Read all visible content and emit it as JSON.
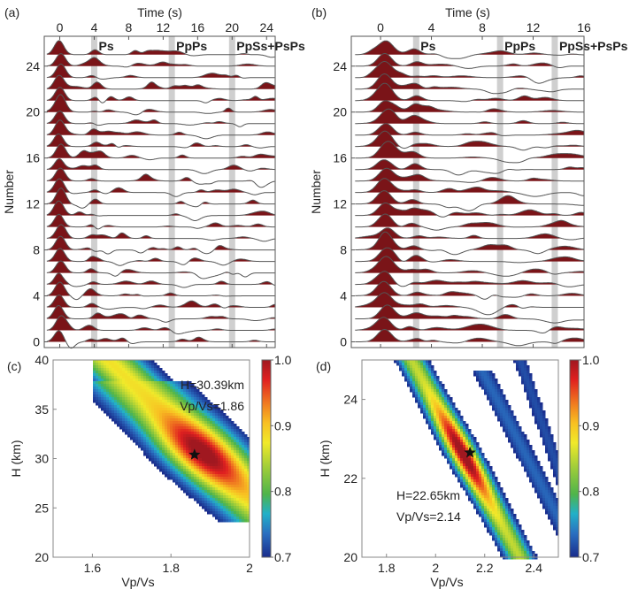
{
  "chart_data": [
    {
      "id": "a",
      "type": "area",
      "panel_label": "(a)",
      "title": "Time (s)",
      "xlabel": "Time (s)",
      "ylabel": "Number",
      "xticks": [
        0,
        4,
        8,
        12,
        16,
        20,
        24
      ],
      "yticks": [
        0,
        4,
        8,
        12,
        16,
        20,
        24
      ],
      "xlim": [
        -1.8,
        25
      ],
      "ylim": [
        -0.5,
        26.6
      ],
      "trace_count": 26,
      "fill_color": "#7a1418",
      "phases": [
        {
          "name": "Ps",
          "time": 4.0
        },
        {
          "name": "PpPs",
          "time": 13.0
        },
        {
          "name": "PpSs+PsPs",
          "time": 20.0
        }
      ]
    },
    {
      "id": "b",
      "type": "area",
      "panel_label": "(b)",
      "title": "Time (s)",
      "xlabel": "Time (s)",
      "ylabel": "Number",
      "xticks": [
        0,
        4,
        8,
        12,
        16
      ],
      "yticks": [
        0,
        4,
        8,
        12,
        16,
        20,
        24
      ],
      "xlim": [
        -2.3,
        16
      ],
      "ylim": [
        -0.5,
        26.6
      ],
      "trace_count": 26,
      "fill_color": "#7a1418",
      "phases": [
        {
          "name": "Ps",
          "time": 2.8
        },
        {
          "name": "PpPs",
          "time": 9.4
        },
        {
          "name": "PpSs+PsPs",
          "time": 13.7
        }
      ]
    },
    {
      "id": "c",
      "type": "heatmap",
      "panel_label": "(c)",
      "xlabel": "Vp/Vs",
      "ylabel": "H (km)",
      "xticks": [
        1.6,
        1.8,
        2.0
      ],
      "yticks": [
        20,
        25,
        30,
        35,
        40
      ],
      "xlim": [
        1.5,
        2.0
      ],
      "ylim": [
        20,
        40
      ],
      "best": {
        "H": 30.39,
        "VpVs": 1.86
      },
      "annotation": [
        "H=30.39km",
        "Vp/Vs=1.86"
      ],
      "colorbar": {
        "min": 0.7,
        "max": 1.0,
        "ticks": [
          "1.0",
          "0.9",
          "0.8",
          "0.7"
        ]
      }
    },
    {
      "id": "d",
      "type": "heatmap",
      "panel_label": "(d)",
      "xlabel": "Vp/Vs",
      "ylabel": "H (km)",
      "xticks": [
        1.8,
        2.0,
        2.2,
        2.4
      ],
      "yticks": [
        20,
        22,
        24
      ],
      "xlim": [
        1.7,
        2.5
      ],
      "ylim": [
        20,
        25
      ],
      "best": {
        "H": 22.65,
        "VpVs": 2.14
      },
      "annotation": [
        "H=22.65km",
        "Vp/Vs=2.14"
      ],
      "colorbar": {
        "min": 0.7,
        "max": 1.0,
        "ticks": [
          "1.0",
          "0.9",
          "0.8",
          "0.7"
        ]
      }
    }
  ]
}
